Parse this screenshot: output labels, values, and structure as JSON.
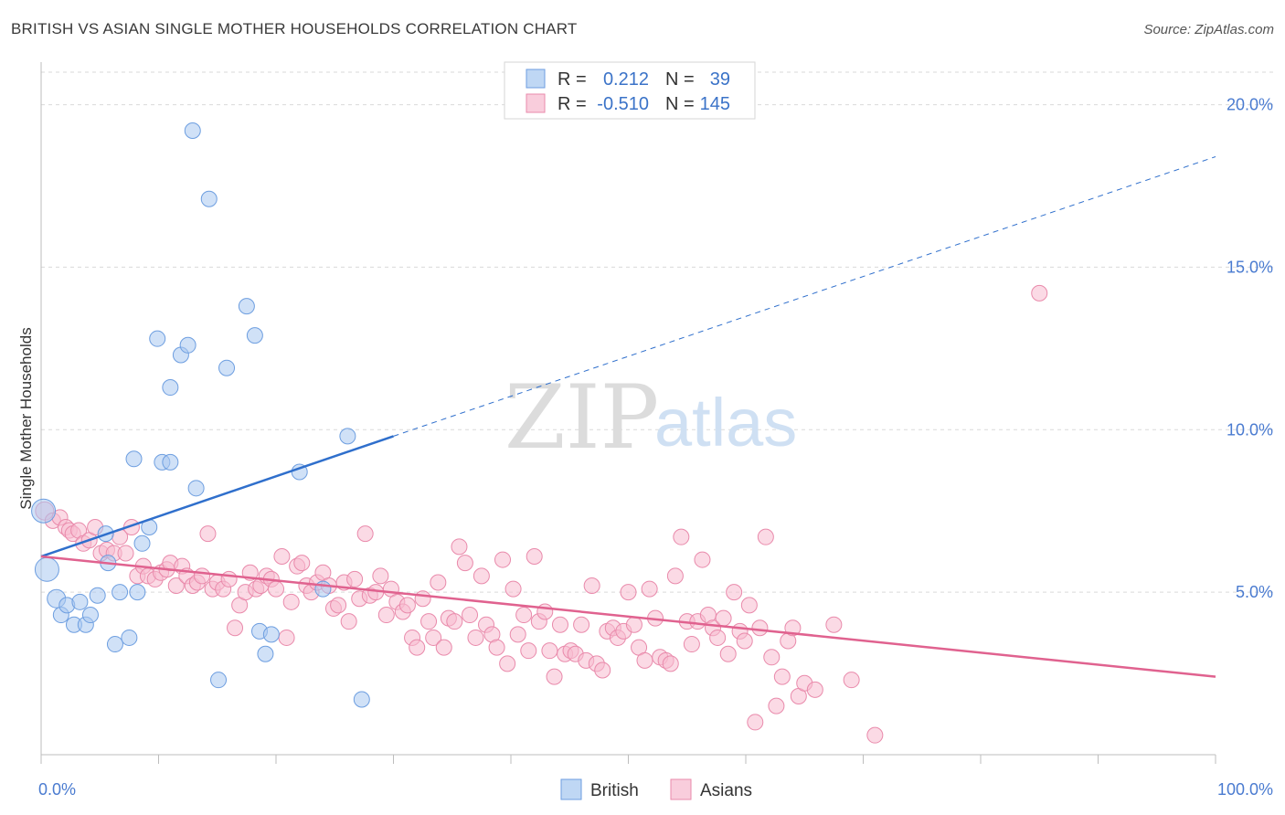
{
  "header": {
    "title": "BRITISH VS ASIAN SINGLE MOTHER HOUSEHOLDS CORRELATION CHART",
    "source": "Source: ZipAtlas.com"
  },
  "watermark": {
    "zip": "ZIP",
    "atlas": "atlas"
  },
  "legend": {
    "rows": [
      {
        "r_label": "R = ",
        "r_value": "0.212",
        "n_label": "N = ",
        "n_value": "39",
        "color": "#9ec3ee"
      },
      {
        "r_label": "R = ",
        "r_value": "-0.510",
        "n_label": "N = ",
        "n_value": "145",
        "color": "#f5b3c8"
      }
    ]
  },
  "bottom_legend": [
    {
      "label": "British",
      "color": "#9ec3ee"
    },
    {
      "label": "Asians",
      "color": "#f5b3c8"
    }
  ],
  "colors": {
    "british_fill": "#a9c9f0",
    "british_stroke": "#6d9ee0",
    "british_line": "#2f6fcc",
    "asian_fill": "#f7bcd0",
    "asian_stroke": "#e98aab",
    "asian_line": "#e0628f",
    "grid": "#d9d9d9",
    "tick_text": "#4a7bd0"
  },
  "chart_data": {
    "type": "scatter",
    "title": "BRITISH VS ASIAN SINGLE MOTHER HOUSEHOLDS CORRELATION CHART",
    "xlabel": "",
    "ylabel": "Single Mother Households",
    "xlim": [
      0,
      100
    ],
    "ylim": [
      0,
      21
    ],
    "x_tick_labels": [
      {
        "value": 0,
        "label": "0.0%"
      },
      {
        "value": 100,
        "label": "100.0%"
      }
    ],
    "y_tick_labels": [
      {
        "value": 5,
        "label": "5.0%"
      },
      {
        "value": 10,
        "label": "10.0%"
      },
      {
        "value": 15,
        "label": "15.0%"
      },
      {
        "value": 20,
        "label": "20.0%"
      }
    ],
    "grid": true,
    "legend_position": "top-center",
    "series": [
      {
        "name": "British",
        "r": 0.212,
        "n": 39,
        "trend": {
          "x0": 0,
          "y0": 6.1,
          "x1": 30,
          "y1": 9.8,
          "extend_to_x": 100,
          "extend_to_y": 18.4
        },
        "points": [
          [
            0.2,
            7.5,
            "l"
          ],
          [
            0.5,
            5.7,
            "l"
          ],
          [
            1.3,
            4.8,
            "m"
          ],
          [
            1.7,
            4.3
          ],
          [
            2.2,
            4.6
          ],
          [
            2.8,
            4.0
          ],
          [
            3.3,
            4.7
          ],
          [
            3.8,
            4.0
          ],
          [
            4.2,
            4.3
          ],
          [
            4.8,
            4.9
          ],
          [
            5.5,
            6.8
          ],
          [
            5.7,
            5.9
          ],
          [
            6.3,
            3.4
          ],
          [
            6.7,
            5.0
          ],
          [
            7.5,
            3.6
          ],
          [
            7.9,
            9.1
          ],
          [
            8.2,
            5.0
          ],
          [
            8.6,
            6.5
          ],
          [
            9.2,
            7.0
          ],
          [
            9.9,
            12.8
          ],
          [
            10.3,
            9.0
          ],
          [
            11.0,
            9.0
          ],
          [
            11.0,
            11.3
          ],
          [
            11.9,
            12.3
          ],
          [
            12.5,
            12.6
          ],
          [
            12.9,
            19.2
          ],
          [
            13.2,
            8.2
          ],
          [
            14.3,
            17.1
          ],
          [
            15.1,
            2.3
          ],
          [
            15.8,
            11.9
          ],
          [
            17.5,
            13.8
          ],
          [
            18.2,
            12.9
          ],
          [
            18.6,
            3.8
          ],
          [
            19.1,
            3.1
          ],
          [
            19.6,
            3.7
          ],
          [
            22.0,
            8.7
          ],
          [
            24.0,
            5.1
          ],
          [
            26.1,
            9.8
          ],
          [
            27.3,
            1.7
          ]
        ]
      },
      {
        "name": "Asians",
        "r": -0.51,
        "n": 145,
        "trend": {
          "x0": 0,
          "y0": 6.1,
          "x1": 100,
          "y1": 2.4
        },
        "points": [
          [
            0.3,
            7.5,
            "m"
          ],
          [
            1.0,
            7.2
          ],
          [
            1.6,
            7.3
          ],
          [
            2.1,
            7.0
          ],
          [
            2.4,
            6.9
          ],
          [
            2.7,
            6.8
          ],
          [
            3.2,
            6.9
          ],
          [
            3.6,
            6.5
          ],
          [
            4.1,
            6.6
          ],
          [
            4.6,
            7.0
          ],
          [
            5.1,
            6.2
          ],
          [
            5.6,
            6.3
          ],
          [
            6.2,
            6.2
          ],
          [
            6.7,
            6.7
          ],
          [
            7.2,
            6.2
          ],
          [
            7.7,
            7.0
          ],
          [
            8.2,
            5.5
          ],
          [
            8.7,
            5.8
          ],
          [
            9.1,
            5.5
          ],
          [
            9.7,
            5.4
          ],
          [
            10.2,
            5.6
          ],
          [
            10.7,
            5.7
          ],
          [
            11.0,
            5.9
          ],
          [
            11.5,
            5.2
          ],
          [
            12.0,
            5.8
          ],
          [
            12.4,
            5.5
          ],
          [
            12.9,
            5.2
          ],
          [
            13.3,
            5.3
          ],
          [
            13.7,
            5.5
          ],
          [
            14.2,
            6.8
          ],
          [
            14.6,
            5.1
          ],
          [
            15.0,
            5.3
          ],
          [
            15.5,
            5.1
          ],
          [
            16.0,
            5.4
          ],
          [
            16.5,
            3.9
          ],
          [
            16.9,
            4.6
          ],
          [
            17.4,
            5.0
          ],
          [
            17.8,
            5.6
          ],
          [
            18.3,
            5.1
          ],
          [
            18.7,
            5.2
          ],
          [
            19.2,
            5.5
          ],
          [
            19.6,
            5.4
          ],
          [
            20.0,
            5.1
          ],
          [
            20.5,
            6.1
          ],
          [
            20.9,
            3.6
          ],
          [
            21.3,
            4.7
          ],
          [
            21.8,
            5.8
          ],
          [
            22.2,
            5.9
          ],
          [
            22.6,
            5.2
          ],
          [
            23.0,
            5.0
          ],
          [
            23.5,
            5.3
          ],
          [
            24.0,
            5.6
          ],
          [
            24.5,
            5.2
          ],
          [
            24.9,
            4.5
          ],
          [
            25.3,
            4.6
          ],
          [
            25.8,
            5.3
          ],
          [
            26.2,
            4.1
          ],
          [
            26.7,
            5.4
          ],
          [
            27.1,
            4.8
          ],
          [
            27.6,
            6.8
          ],
          [
            28.0,
            4.9
          ],
          [
            28.5,
            5.0
          ],
          [
            28.9,
            5.5
          ],
          [
            29.4,
            4.3
          ],
          [
            29.8,
            5.1
          ],
          [
            30.3,
            4.7
          ],
          [
            30.8,
            4.4
          ],
          [
            31.2,
            4.6
          ],
          [
            31.6,
            3.6
          ],
          [
            32.0,
            3.3
          ],
          [
            32.5,
            4.8
          ],
          [
            33.0,
            4.1
          ],
          [
            33.4,
            3.6
          ],
          [
            33.8,
            5.3
          ],
          [
            34.3,
            3.3
          ],
          [
            34.7,
            4.2
          ],
          [
            35.2,
            4.1
          ],
          [
            35.6,
            6.4
          ],
          [
            36.1,
            5.9
          ],
          [
            36.5,
            4.3
          ],
          [
            37.0,
            3.6
          ],
          [
            37.5,
            5.5
          ],
          [
            37.9,
            4.0
          ],
          [
            38.4,
            3.7
          ],
          [
            38.8,
            3.3
          ],
          [
            39.3,
            6.0
          ],
          [
            39.7,
            2.8
          ],
          [
            40.2,
            5.1
          ],
          [
            40.6,
            3.7
          ],
          [
            41.1,
            4.3
          ],
          [
            41.5,
            3.2
          ],
          [
            42.0,
            6.1
          ],
          [
            42.4,
            4.1
          ],
          [
            42.9,
            4.4
          ],
          [
            43.3,
            3.2
          ],
          [
            43.7,
            2.4
          ],
          [
            44.2,
            4.0
          ],
          [
            44.6,
            3.1
          ],
          [
            45.1,
            3.2
          ],
          [
            45.5,
            3.1
          ],
          [
            46.0,
            4.0
          ],
          [
            46.4,
            2.9
          ],
          [
            46.9,
            5.2
          ],
          [
            47.3,
            2.8
          ],
          [
            47.8,
            2.6
          ],
          [
            48.2,
            3.8
          ],
          [
            48.7,
            3.9
          ],
          [
            49.1,
            3.6
          ],
          [
            49.6,
            3.8
          ],
          [
            50.0,
            5.0
          ],
          [
            50.5,
            4.0
          ],
          [
            50.9,
            3.3
          ],
          [
            51.4,
            2.9
          ],
          [
            51.8,
            5.1
          ],
          [
            52.3,
            4.2
          ],
          [
            52.7,
            3.0
          ],
          [
            53.2,
            2.9
          ],
          [
            53.6,
            2.8
          ],
          [
            54.0,
            5.5
          ],
          [
            54.5,
            6.7
          ],
          [
            55.0,
            4.1
          ],
          [
            55.4,
            3.4
          ],
          [
            55.9,
            4.1
          ],
          [
            56.3,
            6.0
          ],
          [
            56.8,
            4.3
          ],
          [
            57.2,
            3.9
          ],
          [
            57.6,
            3.6
          ],
          [
            58.1,
            4.2
          ],
          [
            58.5,
            3.1
          ],
          [
            59.0,
            5.0
          ],
          [
            59.5,
            3.8
          ],
          [
            59.9,
            3.5
          ],
          [
            60.3,
            4.6
          ],
          [
            60.8,
            1.0
          ],
          [
            61.2,
            3.9
          ],
          [
            61.7,
            6.7
          ],
          [
            62.2,
            3.0
          ],
          [
            62.6,
            1.5
          ],
          [
            63.1,
            2.4
          ],
          [
            63.6,
            3.5
          ],
          [
            64.0,
            3.9
          ],
          [
            64.5,
            1.8
          ],
          [
            65.0,
            2.2
          ],
          [
            65.9,
            2.0
          ],
          [
            67.5,
            4.0
          ],
          [
            69.0,
            2.3
          ],
          [
            85.0,
            14.2
          ],
          [
            71.0,
            0.6
          ]
        ]
      }
    ]
  }
}
